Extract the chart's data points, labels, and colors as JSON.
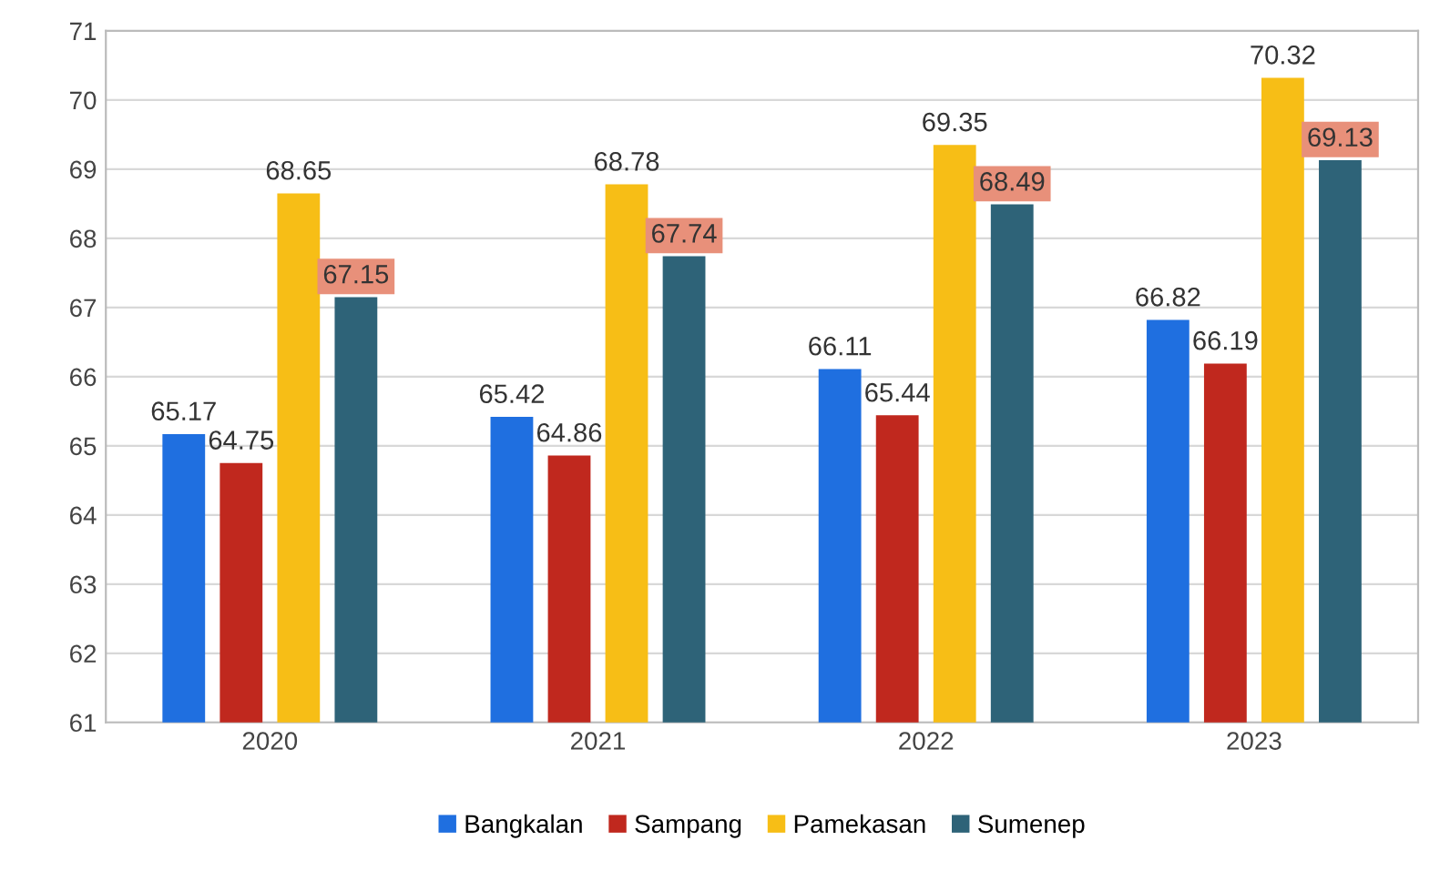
{
  "chart_data": {
    "type": "bar",
    "categories": [
      "2020",
      "2021",
      "2022",
      "2023"
    ],
    "series": [
      {
        "name": "Bangkalan",
        "color": "#1f6fe0",
        "values": [
          65.17,
          65.42,
          66.11,
          66.82
        ]
      },
      {
        "name": "Sampang",
        "color": "#c0281e",
        "values": [
          64.75,
          64.86,
          65.44,
          66.19
        ]
      },
      {
        "name": "Pamekasan",
        "color": "#f7be16",
        "values": [
          68.65,
          68.78,
          69.35,
          70.32
        ]
      },
      {
        "name": "Sumenep",
        "color": "#2e6378",
        "values": [
          67.15,
          67.74,
          68.49,
          69.13
        ]
      }
    ],
    "ylim": [
      61,
      71
    ],
    "yticks": [
      61,
      62,
      63,
      64,
      65,
      66,
      67,
      68,
      69,
      70,
      71
    ],
    "grid": "y",
    "legend": "bottom",
    "data_labels": true
  }
}
